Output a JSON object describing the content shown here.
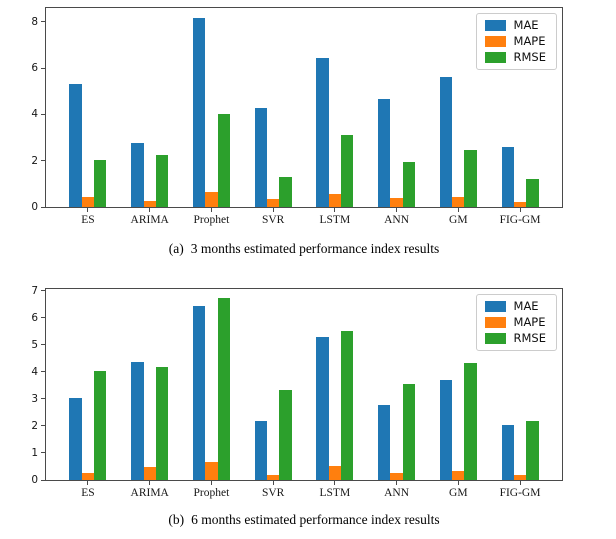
{
  "page": {
    "background": "#ffffff"
  },
  "colors": {
    "MAE": "#1f77b4",
    "MAPE": "#ff7f0e",
    "RMSE": "#2ca02c",
    "spine": "#4a4a4a",
    "legend_border": "#cccccc"
  },
  "chart_data": [
    {
      "type": "bar",
      "caption_prefix": "(a)",
      "caption_text": "3 months estimated performance index results",
      "title": "",
      "xlabel": "",
      "ylabel": "",
      "categories": [
        "ES",
        "ARIMA",
        "Prophet",
        "SVR",
        "LSTM",
        "ANN",
        "GM",
        "FIG-GM"
      ],
      "series": [
        {
          "name": "MAE",
          "values": [
            5.3,
            2.78,
            8.15,
            4.28,
            6.45,
            4.68,
            5.6,
            2.6
          ]
        },
        {
          "name": "MAPE",
          "values": [
            0.45,
            0.25,
            0.67,
            0.36,
            0.55,
            0.39,
            0.45,
            0.22
          ]
        },
        {
          "name": "RMSE",
          "values": [
            2.05,
            2.25,
            4.03,
            1.3,
            3.1,
            1.93,
            2.47,
            1.2
          ]
        }
      ],
      "yticks": [
        0,
        2,
        4,
        6,
        8
      ],
      "ylim": [
        0,
        8.6
      ],
      "xlim": [
        -0.68,
        7.68
      ],
      "bar_width": 0.2,
      "grid": false,
      "legend": {
        "position": "upper right",
        "labels": [
          "MAE",
          "MAPE",
          "RMSE"
        ]
      }
    },
    {
      "type": "bar",
      "caption_prefix": "(b)",
      "caption_text": "6 months estimated performance index results",
      "title": "",
      "xlabel": "",
      "ylabel": "",
      "categories": [
        "ES",
        "ARIMA",
        "Prophet",
        "SVR",
        "LSTM",
        "ANN",
        "GM",
        "FIG-GM"
      ],
      "series": [
        {
          "name": "MAE",
          "values": [
            3.05,
            4.37,
            6.45,
            2.2,
            5.3,
            2.78,
            3.72,
            2.02
          ]
        },
        {
          "name": "MAPE",
          "values": [
            0.27,
            0.5,
            0.65,
            0.17,
            0.53,
            0.26,
            0.34,
            0.19
          ]
        },
        {
          "name": "RMSE",
          "values": [
            4.02,
            4.17,
            6.75,
            3.32,
            5.52,
            3.55,
            4.32,
            2.17
          ]
        }
      ],
      "yticks": [
        0,
        1,
        2,
        3,
        4,
        5,
        6,
        7
      ],
      "ylim": [
        0,
        7.07
      ],
      "xlim": [
        -0.68,
        7.68
      ],
      "bar_width": 0.2,
      "grid": false,
      "legend": {
        "position": "upper right",
        "labels": [
          "MAE",
          "MAPE",
          "RMSE"
        ]
      }
    }
  ]
}
